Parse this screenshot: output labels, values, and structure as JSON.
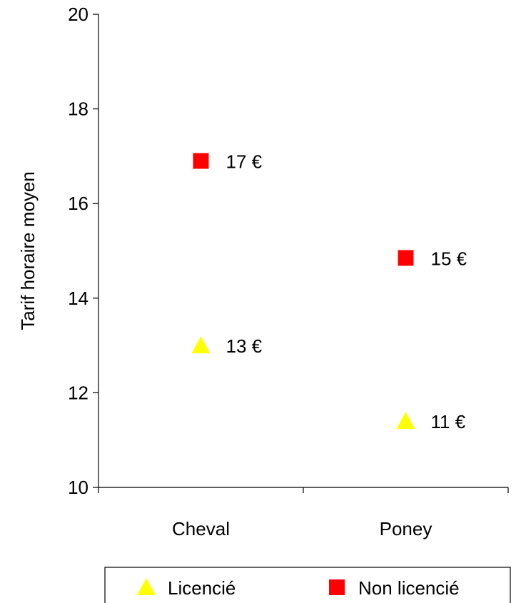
{
  "chart_data": {
    "type": "scatter",
    "title": "",
    "xlabel": "",
    "ylabel": "Tarif horaire moyen",
    "categories": [
      "Cheval",
      "Poney"
    ],
    "ylim": [
      10,
      20
    ],
    "yticks": [
      10,
      12,
      14,
      16,
      18,
      20
    ],
    "grid": false,
    "legend_position": "bottom",
    "series": [
      {
        "name": "Licencié",
        "marker": "triangle",
        "color": "#FFFF00",
        "values": [
          13,
          11.4
        ],
        "labels": [
          "13 €",
          "11 €"
        ]
      },
      {
        "name": "Non licencié",
        "marker": "square",
        "color": "#FF0000",
        "values": [
          16.9,
          14.85
        ],
        "labels": [
          "17 €",
          "15 €"
        ]
      }
    ]
  }
}
